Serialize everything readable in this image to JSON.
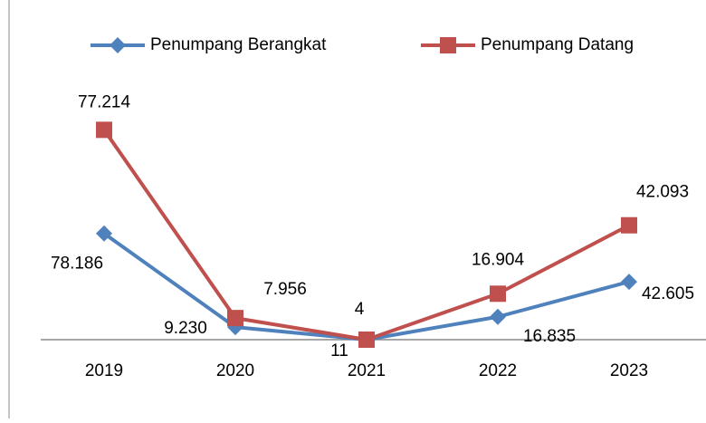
{
  "chart_data": {
    "type": "line",
    "categories": [
      "2019",
      "2020",
      "2021",
      "2022",
      "2023"
    ],
    "series": [
      {
        "name": "Penumpang Berangkat",
        "color": "#4f81bd",
        "marker": "diamond",
        "values": [
          78186,
          9230,
          11,
          16835,
          42605
        ],
        "value_labels": [
          "78.186",
          "9.230",
          "11",
          "16.835",
          "42.605"
        ]
      },
      {
        "name": "Penumpang Datang",
        "color": "#c0504d",
        "marker": "square",
        "axis": "y2",
        "values": [
          77214,
          7956,
          4,
          16904,
          42093
        ],
        "value_labels": [
          "77.214",
          "7.956",
          "4",
          "16.904",
          "42.093"
        ]
      }
    ],
    "ylim": [
      0,
      160000
    ],
    "y2lim": [
      0,
      80000
    ],
    "legend": "top"
  }
}
